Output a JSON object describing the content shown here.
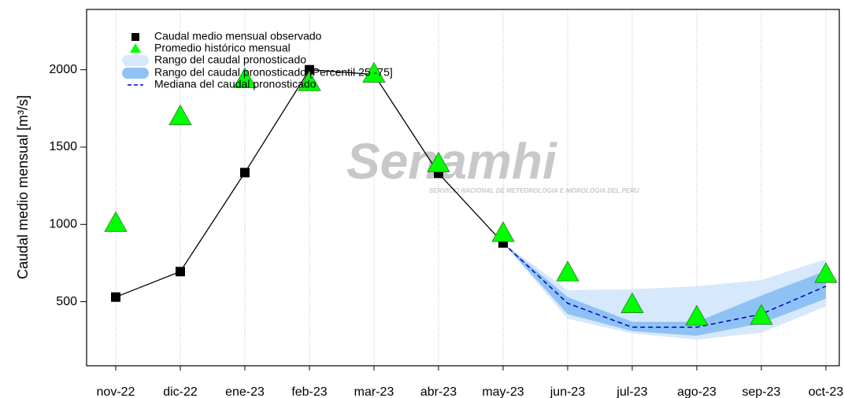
{
  "chart_data": {
    "type": "line",
    "ylabel": "Caudal medio mensual  [m³/s]",
    "watermark": {
      "title": "Senamhi",
      "subtitle": "SERVICIO NACIONAL DE METEOROLOGIA E HIDROLOGIA DEL PERU"
    },
    "categories": [
      "nov-22",
      "dic-22",
      "ene-23",
      "feb-23",
      "mar-23",
      "abr-23",
      "may-23",
      "jun-23",
      "jul-23",
      "ago-23",
      "sep-23",
      "oct-23"
    ],
    "ylim": [
      86,
      2390
    ],
    "yticks": [
      500,
      1000,
      1500,
      2000
    ],
    "grid": true,
    "legend": "upper left",
    "series": [
      {
        "name": "Caudal medio mensual observado",
        "kind": "line-square",
        "color": "#000000",
        "values": [
          530,
          695,
          1335,
          2000,
          1970,
          1330,
          880,
          null,
          null,
          null,
          null,
          null
        ]
      },
      {
        "name": "Promedio histórico mensual",
        "kind": "triangle",
        "color": "#00ff00",
        "values": [
          1010,
          1700,
          1940,
          1920,
          1975,
          1395,
          945,
          690,
          485,
          405,
          410,
          680
        ]
      },
      {
        "name": "Rango del caudal pronosticado",
        "kind": "band",
        "color": "#d6e8fb",
        "lower": [
          null,
          null,
          null,
          null,
          null,
          null,
          880,
          390,
          295,
          255,
          300,
          470
        ],
        "upper": [
          null,
          null,
          null,
          null,
          null,
          null,
          880,
          575,
          580,
          600,
          640,
          775
        ]
      },
      {
        "name": "Rango del caudal pronosticado [Percentil 25 -75]",
        "kind": "band",
        "color": "#8fc2f4",
        "lower": [
          null,
          null,
          null,
          null,
          null,
          null,
          880,
          420,
          310,
          280,
          360,
          520
        ],
        "upper": [
          null,
          null,
          null,
          null,
          null,
          null,
          880,
          530,
          370,
          370,
          540,
          700
        ]
      },
      {
        "name": "Mediana del caudal pronosticado",
        "kind": "dashed",
        "color": "#0000cc",
        "values": [
          null,
          null,
          null,
          null,
          null,
          null,
          880,
          490,
          335,
          335,
          420,
          600
        ]
      }
    ]
  }
}
